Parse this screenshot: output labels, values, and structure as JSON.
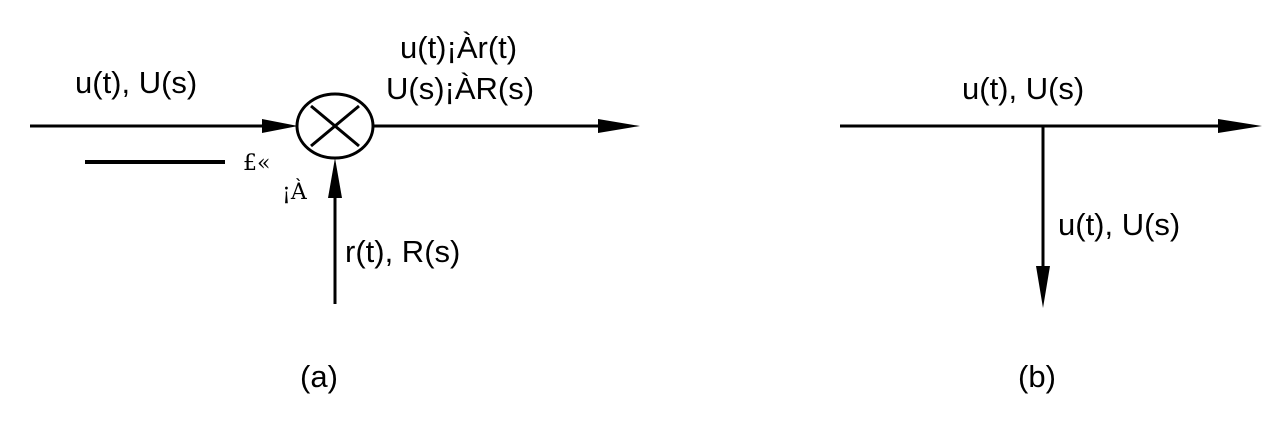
{
  "diagram_a": {
    "input_label": "u(t), U(s)",
    "output_label_line1": "u(t)¡Àr(t)",
    "output_label_line2": "U(s)¡ÀR(s)",
    "sign_top": "£«",
    "sign_bottom": "¡À",
    "feedback_label": "r(t), R(s)",
    "caption": "(a)"
  },
  "diagram_b": {
    "top_label": "u(t), U(s)",
    "branch_label": "u(t), U(s)",
    "caption": "(b)"
  }
}
